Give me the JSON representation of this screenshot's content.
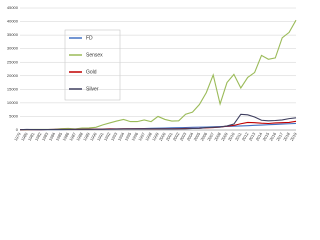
{
  "chart_data": {
    "type": "line",
    "categories": [
      "1979",
      "1980",
      "1981",
      "1982",
      "1983",
      "1984",
      "1985",
      "1986",
      "1987",
      "1988",
      "1989",
      "1990",
      "1991",
      "1992",
      "1993",
      "1994",
      "1995",
      "1996",
      "1997",
      "1998",
      "1999",
      "2000",
      "2001",
      "2002",
      "2003",
      "2004",
      "2005",
      "2006",
      "2007",
      "2008",
      "2009",
      "2010",
      "2011",
      "2012",
      "2013",
      "2014",
      "2015",
      "2016",
      "2017",
      "2018",
      "2019"
    ],
    "series": [
      {
        "name": "FD",
        "color": "#4472c4",
        "values": [
          100,
          110,
          121,
          133,
          146,
          161,
          177,
          195,
          214,
          236,
          259,
          285,
          314,
          345,
          380,
          418,
          459,
          505,
          556,
          611,
          672,
          740,
          800,
          860,
          920,
          980,
          1040,
          1100,
          1170,
          1250,
          1330,
          1410,
          1500,
          1600,
          1710,
          1830,
          1950,
          2070,
          2190,
          2300,
          2420
        ]
      },
      {
        "name": "Sensex",
        "color": "#9bbb59",
        "values": [
          100,
          130,
          200,
          220,
          210,
          260,
          500,
          560,
          400,
          700,
          780,
          1000,
          1900,
          2600,
          3300,
          3900,
          3100,
          3100,
          3700,
          3100,
          5000,
          3900,
          3300,
          3400,
          5800,
          6600,
          9400,
          13800,
          20300,
          9600,
          17500,
          20500,
          15500,
          19400,
          21200,
          27500,
          26100,
          26600,
          34000,
          36000,
          40500
        ]
      },
      {
        "name": "Gold",
        "color": "#c00000",
        "values": [
          100,
          150,
          160,
          170,
          180,
          190,
          200,
          210,
          230,
          260,
          290,
          320,
          350,
          420,
          410,
          420,
          430,
          460,
          420,
          390,
          400,
          420,
          430,
          500,
          560,
          600,
          650,
          800,
          900,
          1100,
          1400,
          1700,
          2300,
          2800,
          2700,
          2500,
          2400,
          2600,
          2700,
          2800,
          3200
        ]
      },
      {
        "name": "Silver",
        "color": "#3f3f5f",
        "values": [
          100,
          200,
          180,
          170,
          180,
          190,
          200,
          220,
          240,
          260,
          270,
          280,
          300,
          320,
          340,
          380,
          380,
          400,
          390,
          420,
          420,
          410,
          400,
          420,
          450,
          550,
          600,
          900,
          1000,
          1100,
          1500,
          2200,
          5800,
          5600,
          4800,
          3600,
          3400,
          3500,
          3700,
          4200,
          4500
        ]
      }
    ],
    "ylim": [
      0,
      45000
    ],
    "yticks": [
      0,
      5000,
      10000,
      15000,
      20000,
      25000,
      30000,
      35000,
      40000,
      45000
    ],
    "grid": true
  }
}
